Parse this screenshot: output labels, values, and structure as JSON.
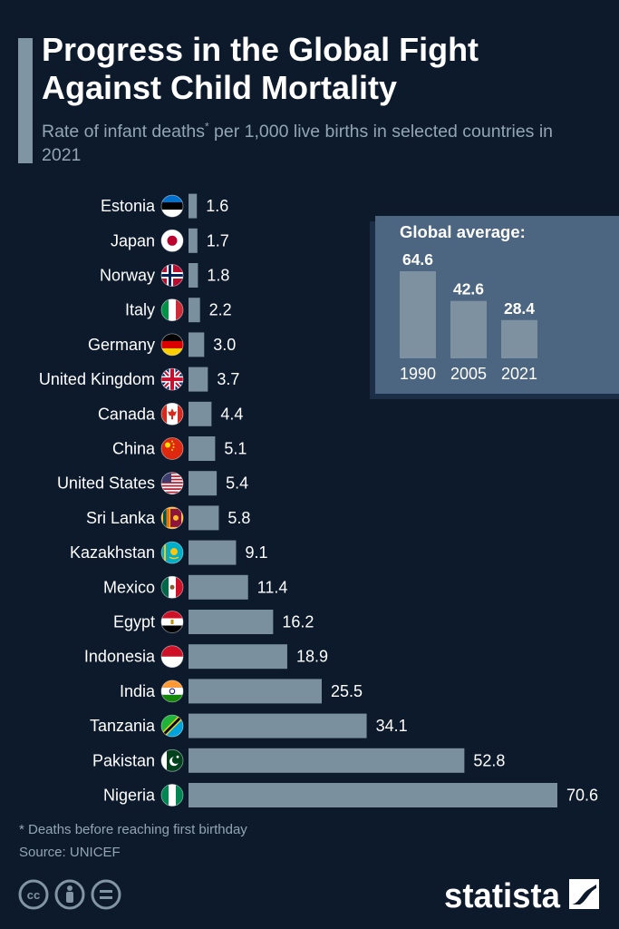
{
  "header": {
    "title": "Progress in the Global Fight Against Child Mortality",
    "subtitle_pre": "Rate of infant deaths",
    "subtitle_mark": "*",
    "subtitle_post": " per 1,000 live births in selected countries in 2021"
  },
  "colors": {
    "background": "#0c1a2c",
    "bar": "#7a909e",
    "inset_background": "#4c6580",
    "muted_text": "#93a5b4"
  },
  "chart_data": [
    {
      "type": "bar",
      "orientation": "horizontal",
      "categories": [
        "Estonia",
        "Japan",
        "Norway",
        "Italy",
        "Germany",
        "United Kingdom",
        "Canada",
        "China",
        "United States",
        "Sri Lanka",
        "Kazakhstan",
        "Mexico",
        "Egypt",
        "Indonesia",
        "India",
        "Tanzania",
        "Pakistan",
        "Nigeria"
      ],
      "values": [
        1.6,
        1.7,
        1.8,
        2.2,
        3.0,
        3.7,
        4.4,
        5.1,
        5.4,
        5.8,
        9.1,
        11.4,
        16.2,
        18.9,
        25.5,
        34.1,
        52.8,
        70.6
      ],
      "value_labels": [
        "1.6",
        "1.7",
        "1.8",
        "2.2",
        "3.0",
        "3.7",
        "4.4",
        "5.1",
        "5.4",
        "5.8",
        "9.1",
        "11.4",
        "16.2",
        "18.9",
        "25.5",
        "34.1",
        "52.8",
        "70.6"
      ],
      "title": "Progress in the Global Fight Against Child Mortality",
      "xlabel": "",
      "ylabel": "",
      "xlim": [
        0,
        70.6
      ],
      "grid": false,
      "legend": "none",
      "category_icons": [
        "estonia-flag-icon",
        "japan-flag-icon",
        "norway-flag-icon",
        "italy-flag-icon",
        "germany-flag-icon",
        "united-kingdom-flag-icon",
        "canada-flag-icon",
        "china-flag-icon",
        "united-states-flag-icon",
        "sri-lanka-flag-icon",
        "kazakhstan-flag-icon",
        "mexico-flag-icon",
        "egypt-flag-icon",
        "indonesia-flag-icon",
        "india-flag-icon",
        "tanzania-flag-icon",
        "pakistan-flag-icon",
        "nigeria-flag-icon"
      ]
    },
    {
      "type": "bar",
      "title": "Global average:",
      "categories": [
        "1990",
        "2005",
        "2021"
      ],
      "values": [
        64.6,
        42.6,
        28.4
      ],
      "value_labels": [
        "64.6",
        "42.6",
        "28.4"
      ],
      "ylim": [
        0,
        64.6
      ],
      "grid": false,
      "legend": "none"
    }
  ],
  "footer": {
    "footnote": "* Deaths before reaching first birthday",
    "source": "Source: UNICEF",
    "license_icons": [
      "creative-commons-icon",
      "attribution-icon",
      "no-derivatives-icon"
    ],
    "brand": "statista",
    "brand_icon": "statista-logo-icon"
  }
}
